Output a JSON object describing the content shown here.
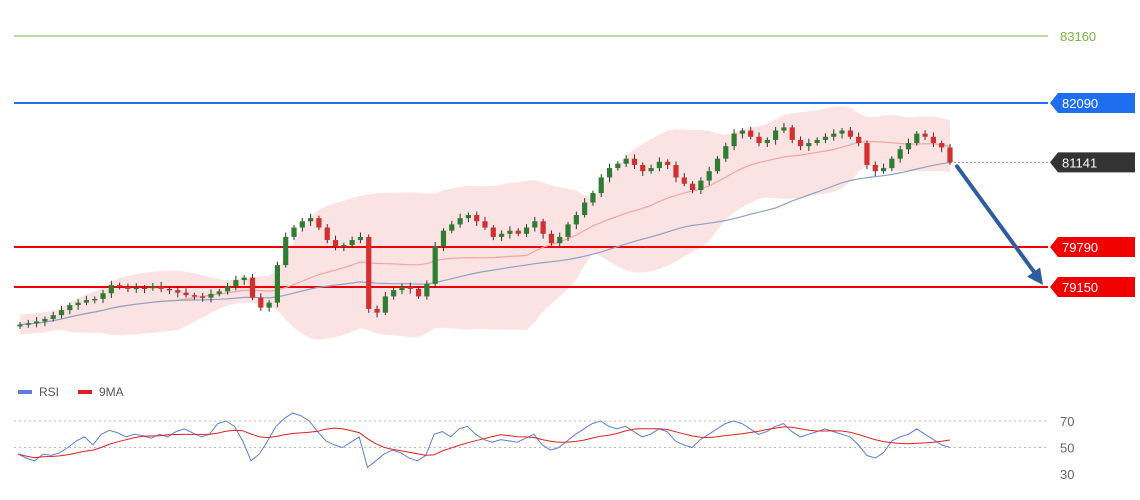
{
  "chart_data": [
    {
      "type": "candlestick",
      "title": "",
      "ylim": [
        78300,
        83350
      ],
      "levels": [
        {
          "name": "level-83160",
          "value": 83160,
          "label": "83160",
          "color": "#7cb342",
          "style": "thin"
        },
        {
          "name": "level-82090",
          "value": 82090,
          "label": "82090",
          "color": "#1e6ff0",
          "style": "line"
        },
        {
          "name": "level-current",
          "value": 81141,
          "label": "81141",
          "color": "#333333",
          "style": "dotted"
        },
        {
          "name": "level-79790",
          "value": 79790,
          "label": "79790",
          "color": "#f00000",
          "style": "line"
        },
        {
          "name": "level-79150",
          "value": 79150,
          "label": "79150",
          "color": "#f00000",
          "style": "line"
        }
      ],
      "arrow": {
        "from": 81141,
        "to": 79150,
        "color": "#2e5c9e"
      },
      "bands": {
        "color": "#fbd9d9"
      },
      "ma_fast_color": "#f5a3a3",
      "ma_slow_color": "#8ea2c4",
      "up_color": "#2e7d32",
      "down_color": "#d32f2f",
      "close_path": [
        78550,
        78570,
        78600,
        78640,
        78700,
        78780,
        78860,
        78900,
        78940,
        78960,
        79050,
        79180,
        79150,
        79120,
        79140,
        79130,
        79160,
        79120,
        79100,
        79060,
        79020,
        79000,
        78980,
        79040,
        79080,
        79160,
        79260,
        79300,
        78980,
        78820,
        78900,
        79500,
        79950,
        80100,
        80200,
        80250,
        80100,
        79900,
        79800,
        79820,
        79900,
        79950,
        78800,
        78740,
        79000,
        79100,
        79150,
        79120,
        79000,
        79200,
        79800,
        80050,
        80150,
        80250,
        80300,
        80200,
        80100,
        79950,
        80000,
        80050,
        80000,
        80100,
        80200,
        80000,
        79850,
        79950,
        80150,
        80300,
        80500,
        80650,
        80900,
        81050,
        81120,
        81200,
        81100,
        81000,
        81050,
        81150,
        81100,
        80900,
        80800,
        80700,
        80850,
        81000,
        81200,
        81400,
        81600,
        81650,
        81550,
        81450,
        81500,
        81650,
        81700,
        81500,
        81400,
        81450,
        81500,
        81550,
        81600,
        81650,
        81550,
        81450,
        81100,
        81000,
        81050,
        81200,
        81350,
        81450,
        81600,
        81550,
        81450,
        81380,
        81141
      ]
    },
    {
      "type": "line",
      "ylim": [
        25,
        82
      ],
      "yticks": [
        "70",
        "50",
        "30"
      ],
      "ytick_values": [
        70,
        50,
        30
      ],
      "dotted_levels": [
        70,
        50
      ],
      "legend": [
        {
          "name": "RSI",
          "color": "#5b7fdb"
        },
        {
          "name": "9MA",
          "color": "#e02020"
        }
      ],
      "rsi_path": [
        45,
        42,
        40,
        45,
        44,
        46,
        50,
        55,
        58,
        52,
        60,
        63,
        61,
        58,
        60,
        59,
        57,
        60,
        58,
        62,
        64,
        61,
        58,
        60,
        68,
        70,
        66,
        55,
        40,
        45,
        55,
        66,
        72,
        76,
        74,
        70,
        62,
        55,
        52,
        50,
        54,
        58,
        35,
        40,
        45,
        48,
        46,
        42,
        40,
        44,
        60,
        62,
        58,
        64,
        66,
        60,
        56,
        54,
        56,
        55,
        54,
        57,
        60,
        52,
        48,
        50,
        55,
        60,
        64,
        68,
        70,
        66,
        64,
        66,
        62,
        58,
        60,
        64,
        62,
        55,
        52,
        50,
        56,
        60,
        64,
        68,
        70,
        68,
        64,
        60,
        62,
        66,
        68,
        62,
        58,
        60,
        62,
        64,
        62,
        60,
        58,
        52,
        44,
        42,
        46,
        55,
        58,
        60,
        64,
        60,
        56,
        52,
        50
      ]
    }
  ]
}
